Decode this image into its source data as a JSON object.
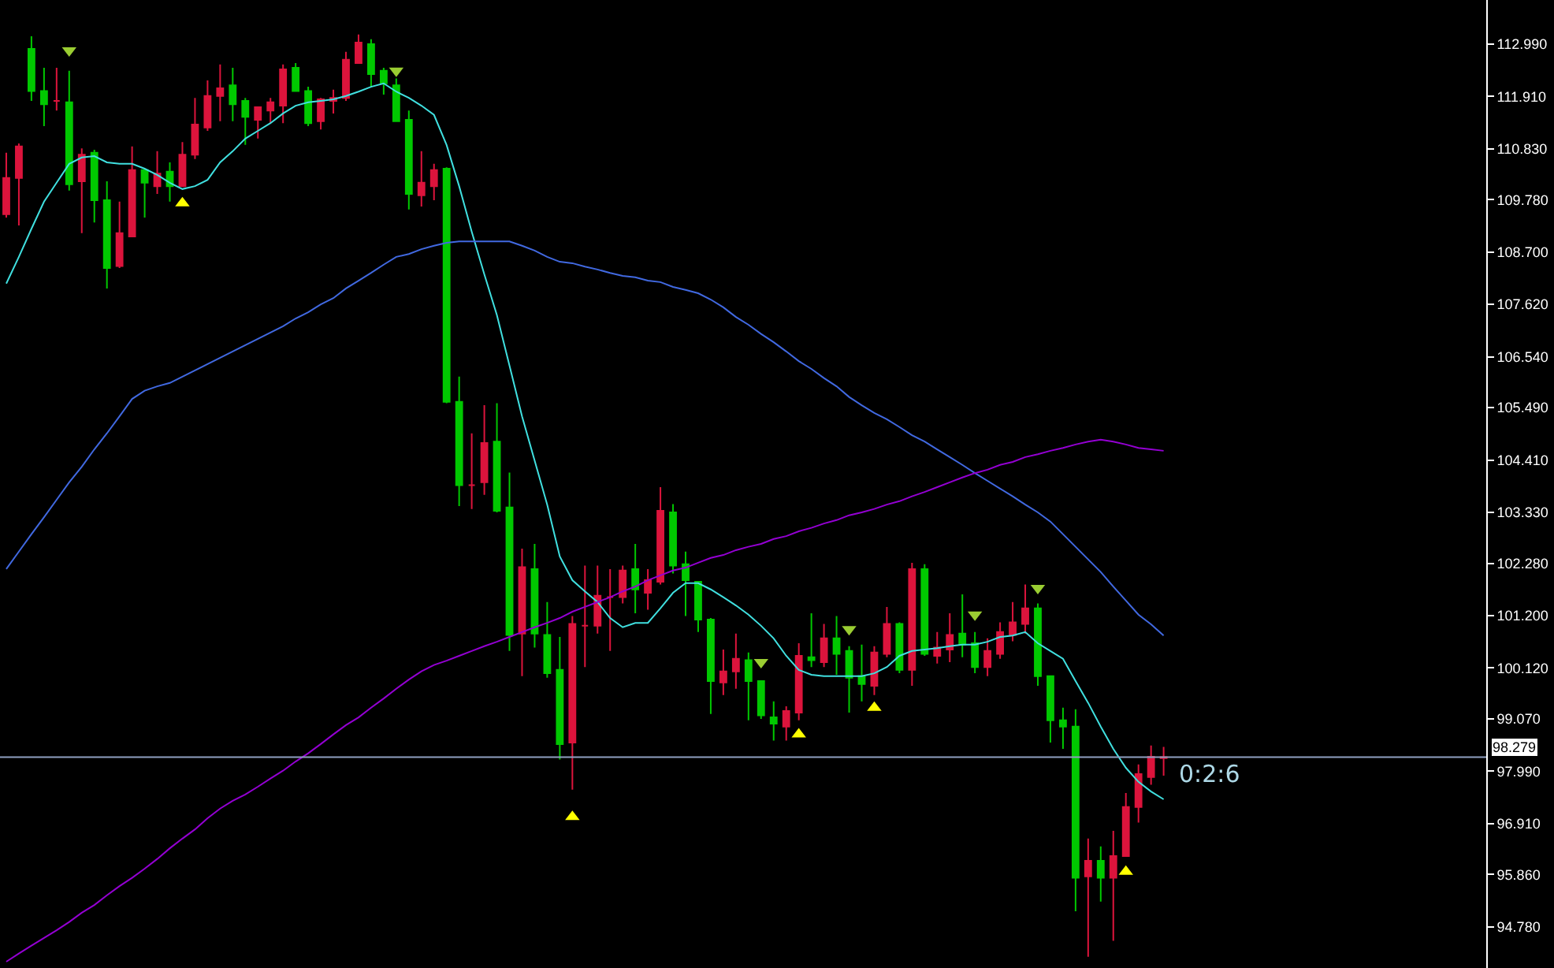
{
  "chart_data": {
    "type": "candlestick",
    "categories": [
      null,
      null,
      null,
      null,
      null,
      null,
      null,
      null,
      null,
      null,
      null,
      null,
      null,
      null,
      null,
      null,
      null,
      null,
      null,
      null,
      null,
      null,
      null,
      null,
      null,
      null,
      null,
      null,
      null,
      null,
      null,
      null,
      null,
      null,
      null,
      null,
      null,
      null,
      null,
      null,
      null,
      null,
      null,
      null,
      null,
      null,
      null,
      null,
      null,
      null,
      null,
      null,
      null,
      null,
      null,
      null,
      null,
      null,
      null,
      null,
      null,
      null,
      null,
      null,
      null,
      null,
      null,
      null,
      null,
      null,
      null,
      null,
      null,
      null,
      null,
      null,
      null,
      null,
      null,
      null,
      null,
      null,
      null,
      null,
      null,
      null,
      null,
      null,
      null,
      null,
      null,
      null,
      null
    ],
    "ohlc": [
      [
        109.48,
        110.75,
        109.41,
        110.23
      ],
      [
        110.23,
        110.94,
        109.25,
        110.88
      ],
      [
        112.89,
        113.15,
        111.82,
        112.02
      ],
      [
        112.02,
        112.5,
        111.3,
        111.75
      ],
      [
        111.82,
        112.5,
        111.62,
        111.82
      ],
      [
        111.79,
        112.44,
        109.97,
        110.1
      ],
      [
        110.16,
        110.84,
        109.09,
        110.71
      ],
      [
        110.75,
        110.81,
        109.31,
        109.77
      ],
      [
        109.77,
        110.16,
        107.95,
        108.37
      ],
      [
        108.41,
        109.74,
        108.37,
        109.09
      ],
      [
        109.02,
        110.88,
        109.02,
        110.39
      ],
      [
        110.39,
        110.39,
        109.41,
        110.13
      ],
      [
        110.06,
        110.78,
        109.9,
        110.32
      ],
      [
        110.36,
        110.55,
        109.74,
        110.06
      ],
      [
        110.06,
        110.97,
        110.06,
        110.71
      ],
      [
        110.71,
        111.88,
        110.62,
        111.33
      ],
      [
        111.27,
        112.24,
        111.2,
        111.92
      ],
      [
        111.92,
        112.57,
        111.4,
        112.08
      ],
      [
        112.14,
        112.5,
        111.4,
        111.75
      ],
      [
        111.82,
        111.88,
        110.91,
        111.49
      ],
      [
        111.43,
        111.69,
        111.04,
        111.69
      ],
      [
        111.62,
        111.88,
        111.36,
        111.79
      ],
      [
        111.72,
        112.57,
        111.36,
        112.47
      ],
      [
        112.5,
        112.6,
        112.02,
        112.02
      ],
      [
        112.02,
        112.11,
        111.3,
        111.36
      ],
      [
        111.4,
        111.88,
        111.23,
        111.85
      ],
      [
        111.82,
        112.05,
        111.56,
        111.88
      ],
      [
        111.88,
        112.83,
        111.82,
        112.67
      ],
      [
        112.6,
        113.19,
        112.6,
        113.02
      ],
      [
        112.99,
        113.09,
        112.11,
        112.37
      ],
      [
        112.44,
        112.5,
        111.95,
        112.18
      ],
      [
        112.14,
        112.28,
        111.4,
        111.4
      ],
      [
        111.43,
        111.62,
        109.58,
        109.9
      ],
      [
        109.87,
        110.78,
        109.64,
        110.13
      ],
      [
        110.06,
        110.52,
        109.77,
        110.39
      ],
      [
        110.42,
        110.45,
        105.58,
        105.61
      ],
      [
        105.61,
        106.13,
        103.46,
        103.89
      ],
      [
        103.89,
        104.96,
        103.4,
        103.89
      ],
      [
        103.95,
        105.54,
        103.69,
        104.76
      ],
      [
        104.79,
        105.58,
        103.33,
        103.36
      ],
      [
        103.43,
        104.15,
        100.47,
        100.8
      ],
      [
        100.83,
        102.58,
        99.95,
        102.2
      ],
      [
        102.16,
        102.68,
        100.54,
        100.83
      ],
      [
        100.8,
        101.48,
        99.92,
        100.01
      ],
      [
        100.08,
        100.76,
        98.23,
        98.55
      ],
      [
        98.58,
        101.19,
        97.61,
        101.03
      ],
      [
        100.99,
        102.23,
        100.14,
        100.99
      ],
      [
        100.99,
        102.23,
        100.83,
        101.61
      ],
      [
        101.58,
        102.16,
        100.47,
        101.58
      ],
      [
        101.58,
        102.23,
        101.45,
        102.13
      ],
      [
        102.16,
        102.68,
        101.25,
        101.74
      ],
      [
        101.67,
        102.16,
        101.32,
        101.93
      ],
      [
        101.9,
        103.85,
        101.84,
        103.36
      ],
      [
        103.33,
        103.5,
        102.07,
        102.23
      ],
      [
        102.26,
        102.52,
        101.19,
        101.93
      ],
      [
        101.9,
        101.9,
        100.86,
        101.12
      ],
      [
        101.12,
        101.15,
        99.17,
        99.85
      ],
      [
        99.82,
        100.5,
        99.56,
        100.05
      ],
      [
        100.05,
        100.83,
        99.69,
        100.31
      ],
      [
        100.28,
        100.44,
        99.04,
        99.85
      ],
      [
        99.85,
        99.85,
        99.07,
        99.14
      ],
      [
        99.1,
        99.43,
        98.62,
        98.97
      ],
      [
        98.91,
        99.33,
        98.62,
        99.23
      ],
      [
        99.2,
        100.63,
        99.04,
        100.37
      ],
      [
        100.34,
        101.25,
        100.14,
        100.28
      ],
      [
        100.24,
        101.03,
        100.14,
        100.73
      ],
      [
        100.73,
        101.19,
        99.98,
        100.41
      ],
      [
        100.47,
        100.57,
        99.2,
        99.92
      ],
      [
        99.95,
        100.6,
        99.43,
        99.79
      ],
      [
        99.75,
        100.57,
        99.56,
        100.44
      ],
      [
        100.41,
        101.38,
        100.34,
        101.03
      ],
      [
        101.03,
        101.06,
        100.01,
        100.08
      ],
      [
        100.08,
        102.29,
        99.75,
        102.16
      ],
      [
        102.16,
        102.26,
        100.37,
        100.41
      ],
      [
        100.37,
        100.86,
        100.21,
        100.54
      ],
      [
        100.5,
        101.25,
        100.24,
        100.8
      ],
      [
        100.83,
        101.64,
        100.34,
        100.6
      ],
      [
        100.63,
        100.86,
        100.01,
        100.14
      ],
      [
        100.14,
        100.73,
        99.95,
        100.47
      ],
      [
        100.41,
        101.06,
        100.31,
        100.86
      ],
      [
        100.8,
        101.48,
        100.67,
        101.06
      ],
      [
        101.03,
        101.84,
        100.83,
        101.35
      ],
      [
        101.35,
        101.45,
        99.75,
        99.95
      ],
      [
        99.95,
        99.95,
        98.58,
        99.04
      ],
      [
        99.04,
        99.3,
        98.45,
        98.91
      ],
      [
        98.91,
        99.27,
        95.1,
        95.79
      ],
      [
        95.82,
        96.6,
        94.16,
        96.14
      ],
      [
        96.14,
        96.44,
        95.3,
        95.79
      ],
      [
        95.79,
        96.76,
        94.49,
        96.24
      ],
      [
        96.24,
        97.54,
        96.24,
        97.25
      ],
      [
        97.25,
        98.13,
        96.93,
        97.93
      ],
      [
        97.87,
        98.52,
        97.71,
        98.29
      ],
      [
        98.26,
        98.49,
        97.9,
        98.279
      ]
    ],
    "colors": [
      "#dc143c",
      "#dc143c",
      "#00c800",
      "#00c800",
      "#dc143c",
      "#00c800",
      "#dc143c",
      "#00c800",
      "#00c800",
      "#dc143c",
      "#dc143c",
      "#00c800",
      "#dc143c",
      "#00c800",
      "#dc143c",
      "#dc143c",
      "#dc143c",
      "#dc143c",
      "#00c800",
      "#00c800",
      "#dc143c",
      "#dc143c",
      "#dc143c",
      "#00c800",
      "#00c800",
      "#dc143c",
      "#dc143c",
      "#dc143c",
      "#dc143c",
      "#00c800",
      "#00c800",
      "#00c800",
      "#00c800",
      "#dc143c",
      "#dc143c",
      "#00c800",
      "#00c800",
      "#dc143c",
      "#dc143c",
      "#00c800",
      "#00c800",
      "#dc143c",
      "#00c800",
      "#00c800",
      "#00c800",
      "#dc143c",
      "#dc143c",
      "#dc143c",
      "#dc143c",
      "#dc143c",
      "#00c800",
      "#dc143c",
      "#dc143c",
      "#00c800",
      "#00c800",
      "#00c800",
      "#00c800",
      "#dc143c",
      "#dc143c",
      "#00c800",
      "#00c800",
      "#00c800",
      "#dc143c",
      "#dc143c",
      "#00c800",
      "#dc143c",
      "#00c800",
      "#00c800",
      "#00c800",
      "#dc143c",
      "#dc143c",
      "#00c800",
      "#dc143c",
      "#00c800",
      "#dc143c",
      "#dc143c",
      "#00c800",
      "#00c800",
      "#dc143c",
      "#dc143c",
      "#dc143c",
      "#dc143c",
      "#00c800",
      "#00c800",
      "#00c800",
      "#00c800",
      "#dc143c",
      "#00c800",
      "#dc143c",
      "#dc143c",
      "#dc143c",
      "#dc143c",
      "#dc143c"
    ],
    "series": [
      {
        "type": "line",
        "color": "#40e0e0",
        "values": [
          108.05,
          108.6,
          109.18,
          109.74,
          110.13,
          110.52,
          110.65,
          110.68,
          110.55,
          110.52,
          110.52,
          110.42,
          110.29,
          110.13,
          110.0,
          110.06,
          110.19,
          110.55,
          110.78,
          111.04,
          111.2,
          111.36,
          111.56,
          111.72,
          111.79,
          111.82,
          111.85,
          111.92,
          112.01,
          112.11,
          112.18,
          112.01,
          111.88,
          111.72,
          111.53,
          110.91,
          110.06,
          109.12,
          108.24,
          107.4,
          106.36,
          105.31,
          104.4,
          103.49,
          102.42,
          101.93,
          101.7,
          101.48,
          101.15,
          100.96,
          101.05,
          101.05,
          101.35,
          101.67,
          101.87,
          101.87,
          101.74,
          101.58,
          101.41,
          101.22,
          100.99,
          100.73,
          100.37,
          100.08,
          99.98,
          99.95,
          99.95,
          99.95,
          99.95,
          100.01,
          100.14,
          100.37,
          100.47,
          100.5,
          100.53,
          100.57,
          100.6,
          100.6,
          100.66,
          100.76,
          100.79,
          100.86,
          100.63,
          100.47,
          100.31,
          99.85,
          99.4,
          98.91,
          98.45,
          98.06,
          97.77,
          97.57,
          97.41
        ]
      },
      {
        "type": "line",
        "color": "#4169e1",
        "values": [
          102.16,
          102.52,
          102.88,
          103.23,
          103.59,
          103.95,
          104.27,
          104.63,
          104.96,
          105.31,
          105.67,
          105.84,
          105.93,
          106.0,
          106.13,
          106.26,
          106.39,
          106.52,
          106.65,
          106.78,
          106.91,
          107.04,
          107.17,
          107.33,
          107.46,
          107.62,
          107.75,
          107.95,
          108.11,
          108.27,
          108.44,
          108.6,
          108.66,
          108.76,
          108.83,
          108.89,
          108.92,
          108.92,
          108.92,
          108.92,
          108.92,
          108.83,
          108.73,
          108.6,
          108.5,
          108.47,
          108.4,
          108.34,
          108.27,
          108.21,
          108.18,
          108.11,
          108.08,
          107.98,
          107.92,
          107.85,
          107.72,
          107.56,
          107.36,
          107.2,
          107.01,
          106.84,
          106.65,
          106.45,
          106.29,
          106.1,
          105.93,
          105.71,
          105.54,
          105.38,
          105.25,
          105.09,
          104.92,
          104.79,
          104.63,
          104.47,
          104.31,
          104.14,
          103.98,
          103.82,
          103.66,
          103.49,
          103.33,
          103.14,
          102.88,
          102.62,
          102.36,
          102.1,
          101.8,
          101.51,
          101.22,
          101.02,
          100.79
        ]
      },
      {
        "type": "line",
        "color": "#9400d3",
        "values": [
          94.06,
          94.23,
          94.39,
          94.55,
          94.71,
          94.88,
          95.07,
          95.23,
          95.43,
          95.62,
          95.79,
          95.98,
          96.18,
          96.4,
          96.6,
          96.79,
          97.02,
          97.22,
          97.38,
          97.51,
          97.67,
          97.84,
          98.0,
          98.19,
          98.36,
          98.55,
          98.75,
          98.94,
          99.1,
          99.3,
          99.49,
          99.69,
          99.88,
          100.05,
          100.18,
          100.27,
          100.37,
          100.47,
          100.57,
          100.66,
          100.76,
          100.86,
          100.96,
          101.05,
          101.15,
          101.28,
          101.38,
          101.48,
          101.58,
          101.7,
          101.8,
          101.93,
          102.03,
          102.13,
          102.19,
          102.29,
          102.39,
          102.45,
          102.55,
          102.62,
          102.68,
          102.78,
          102.84,
          102.94,
          103.01,
          103.1,
          103.17,
          103.27,
          103.33,
          103.4,
          103.49,
          103.56,
          103.66,
          103.75,
          103.85,
          103.95,
          104.05,
          104.14,
          104.21,
          104.31,
          104.37,
          104.47,
          104.53,
          104.6,
          104.66,
          104.73,
          104.79,
          104.83,
          104.79,
          104.73,
          104.66,
          104.63,
          104.6
        ]
      },
      {
        "type": "scatter",
        "color": "#9acd32",
        "marker": "triangle",
        "values": [
          null,
          null,
          null,
          null,
          null,
          112.86,
          null,
          null,
          null,
          null,
          null,
          null,
          null,
          null,
          null,
          null,
          null,
          null,
          null,
          null,
          null,
          null,
          null,
          null,
          null,
          null,
          null,
          null,
          null,
          null,
          null,
          112.44,
          null,
          null,
          null,
          null,
          null,
          null,
          null,
          null,
          null,
          null,
          null,
          null,
          null,
          null,
          null,
          null,
          null,
          null,
          null,
          null,
          null,
          null,
          null,
          null,
          null,
          null,
          null,
          null,
          100.24,
          null,
          null,
          null,
          null,
          null,
          null,
          100.92,
          null,
          null,
          null,
          null,
          null,
          null,
          null,
          null,
          null,
          101.22,
          null,
          null,
          null,
          null,
          101.77,
          null,
          null,
          null,
          null,
          null,
          null,
          null,
          null,
          null,
          null
        ]
      },
      {
        "type": "scatter",
        "color": "#ffff00",
        "marker": "triangle",
        "values": [
          null,
          null,
          null,
          null,
          null,
          null,
          null,
          null,
          null,
          null,
          null,
          null,
          null,
          null,
          109.71,
          null,
          null,
          null,
          null,
          null,
          null,
          null,
          null,
          null,
          null,
          null,
          null,
          null,
          null,
          null,
          null,
          null,
          null,
          null,
          null,
          null,
          null,
          null,
          null,
          null,
          null,
          null,
          null,
          null,
          null,
          97.05,
          null,
          null,
          null,
          null,
          null,
          null,
          null,
          null,
          null,
          null,
          null,
          null,
          null,
          null,
          null,
          null,
          null,
          98.75,
          null,
          null,
          null,
          null,
          null,
          99.3,
          null,
          null,
          null,
          null,
          null,
          null,
          null,
          null,
          null,
          null,
          null,
          null,
          null,
          null,
          null,
          null,
          null,
          null,
          null,
          95.92,
          null,
          null,
          null
        ]
      }
    ],
    "ylim": [
      93.93,
      113.9
    ],
    "yticks": [
      {
        "value": 112.99,
        "label": "112.990"
      },
      {
        "value": 111.91,
        "label": "111.910"
      },
      {
        "value": 110.83,
        "label": "110.830"
      },
      {
        "value": 109.78,
        "label": "109.780"
      },
      {
        "value": 108.7,
        "label": "108.700"
      },
      {
        "value": 107.62,
        "label": "107.620"
      },
      {
        "value": 106.54,
        "label": "106.540"
      },
      {
        "value": 105.49,
        "label": "105.490"
      },
      {
        "value": 104.41,
        "label": "104.410"
      },
      {
        "value": 103.33,
        "label": "103.330"
      },
      {
        "value": 102.28,
        "label": "102.280"
      },
      {
        "value": 101.2,
        "label": "101.200"
      },
      {
        "value": 100.12,
        "label": "100.120"
      },
      {
        "value": 99.07,
        "label": "99.070"
      },
      {
        "value": 97.99,
        "label": "97.990"
      },
      {
        "value": 96.91,
        "label": "96.910"
      },
      {
        "value": 95.86,
        "label": "95.860"
      },
      {
        "value": 94.78,
        "label": "94.780"
      }
    ],
    "tick_labels": "y",
    "grid": false,
    "ref_lines": [
      {
        "axis": "y",
        "value": 98.279,
        "label": "98.279",
        "color": "#8fa0c0"
      }
    ],
    "annotations": [
      "0:2:6"
    ]
  }
}
